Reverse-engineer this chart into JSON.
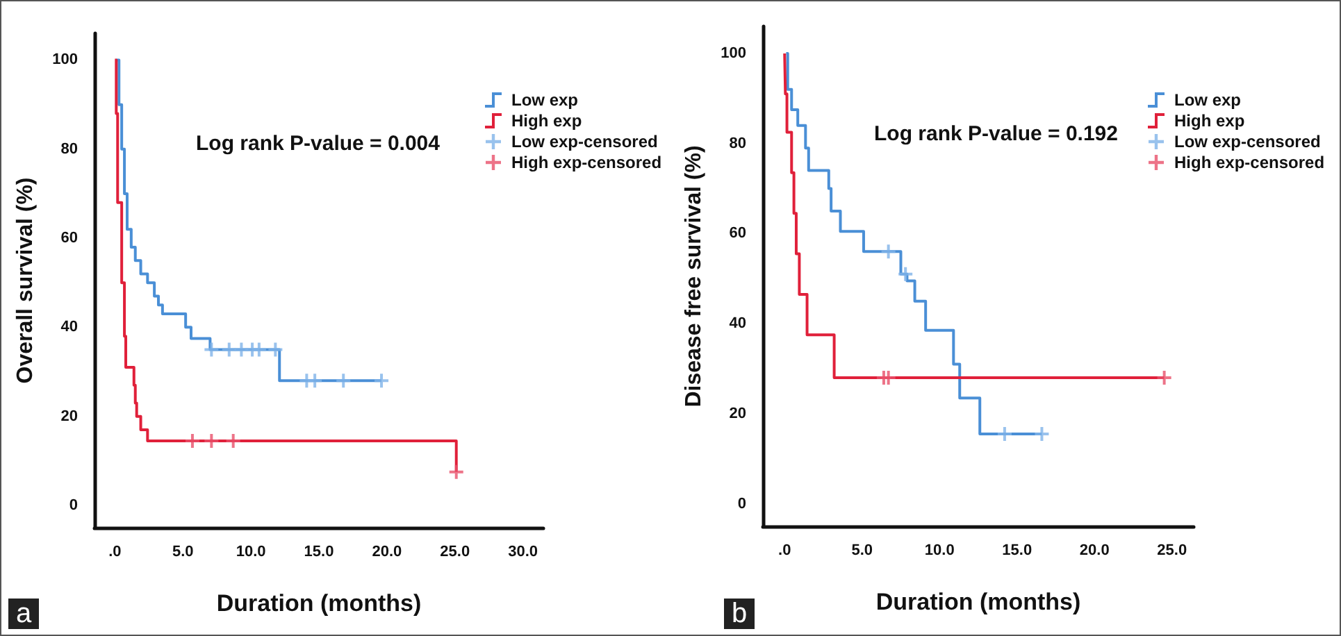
{
  "chart_data": [
    {
      "type": "step",
      "xlabel": "Duration (months)",
      "ylabel": "Overall survival (%)",
      "annotations": [
        "Log rank P-value = 0.004",
        "a"
      ],
      "legend": "right",
      "xlim": [
        -1.5,
        31.5
      ],
      "xticks": [
        {
          "value": 0,
          "label": ".0"
        },
        {
          "value": 5,
          "label": "5.0"
        },
        {
          "value": 10,
          "label": "10.0"
        },
        {
          "value": 15,
          "label": "15.0"
        },
        {
          "value": 20,
          "label": "20.0"
        },
        {
          "value": 25,
          "label": "25.0"
        },
        {
          "value": 30,
          "label": "30.0"
        }
      ],
      "ylim": [
        -5,
        106
      ],
      "yticks": [
        0,
        20,
        40,
        60,
        80,
        100
      ],
      "series": [
        {
          "name": "Low exp",
          "type": "step",
          "marker": "none",
          "color": "#4a8fd6",
          "x": [
            0.1,
            0.3,
            0.5,
            0.7,
            0.9,
            1.2,
            1.5,
            1.9,
            2.4,
            2.9,
            3.2,
            3.5,
            5.2,
            5.6,
            7.0,
            12.1,
            19.6
          ],
          "values": [
            100,
            90,
            80,
            70,
            62,
            58,
            55,
            52,
            50,
            47,
            45,
            43,
            40,
            37.5,
            35,
            28,
            28
          ]
        },
        {
          "name": "High exp",
          "type": "step",
          "marker": "none",
          "color": "#e0203a",
          "x": [
            0,
            0.1,
            0.2,
            0.5,
            0.7,
            0.8,
            1.4,
            1.5,
            1.6,
            1.9,
            2.4,
            25.1
          ],
          "values": [
            100,
            88,
            68,
            50,
            38,
            31,
            27,
            23,
            20,
            17,
            14.5,
            7.5
          ]
        },
        {
          "name": "Low exp-censored",
          "type": "scatter",
          "marker": "cross",
          "color": "#7fb3e8",
          "x": [
            7.1,
            8.4,
            9.3,
            10.1,
            10.6,
            11.8,
            14.1,
            14.7,
            16.8,
            19.6
          ],
          "values": [
            35,
            35,
            35,
            35,
            35,
            35,
            28,
            28,
            28,
            28
          ]
        },
        {
          "name": "High exp-censored",
          "type": "scatter",
          "marker": "cross",
          "color": "#e8506a",
          "x": [
            5.7,
            7.1,
            8.7,
            25.1
          ],
          "values": [
            14.5,
            14.5,
            14.5,
            7.5
          ]
        }
      ]
    },
    {
      "type": "step",
      "xlabel": "Duration (months)",
      "ylabel": "Disease free survival (%)",
      "annotations": [
        "Log rank P-value = 0.192",
        "b"
      ],
      "legend": "right",
      "xlim": [
        -1.4,
        26.4
      ],
      "xticks": [
        {
          "value": 0,
          "label": ".0"
        },
        {
          "value": 5,
          "label": "5.0"
        },
        {
          "value": 10,
          "label": "10.0"
        },
        {
          "value": 15,
          "label": "15.0"
        },
        {
          "value": 20,
          "label": "20.0"
        },
        {
          "value": 25,
          "label": "25.0"
        }
      ],
      "ylim": [
        -5,
        106
      ],
      "yticks": [
        0,
        20,
        40,
        60,
        80,
        100
      ],
      "series": [
        {
          "name": "Low exp",
          "type": "step",
          "marker": "none",
          "color": "#4a8fd6",
          "x": [
            0.1,
            0.2,
            0.45,
            0.85,
            1.35,
            1.55,
            2.85,
            3.0,
            3.6,
            5.1,
            7.5,
            7.9,
            8.4,
            9.1,
            10.9,
            11.3,
            12.6,
            16.6
          ],
          "values": [
            100,
            92,
            87.5,
            84,
            79,
            74,
            70,
            65,
            60.5,
            56,
            51,
            49.5,
            45,
            38.5,
            31,
            23.5,
            15.5,
            15.5
          ]
        },
        {
          "name": "High exp",
          "type": "step",
          "marker": "none",
          "color": "#e0203a",
          "x": [
            0,
            0.05,
            0.15,
            0.45,
            0.6,
            0.75,
            0.95,
            1.45,
            3.2,
            24.5
          ],
          "values": [
            100,
            91,
            82.5,
            73.5,
            64.5,
            55.5,
            46.5,
            37.5,
            28,
            28
          ]
        },
        {
          "name": "Low exp-censored",
          "type": "scatter",
          "marker": "cross",
          "color": "#7fb3e8",
          "x": [
            6.7,
            7.8,
            14.2,
            16.6
          ],
          "values": [
            56,
            51,
            15.5,
            15.5
          ]
        },
        {
          "name": "High exp-censored",
          "type": "scatter",
          "marker": "cross",
          "color": "#e8506a",
          "x": [
            6.4,
            6.7,
            24.5
          ],
          "values": [
            28,
            28,
            28
          ]
        }
      ]
    }
  ]
}
